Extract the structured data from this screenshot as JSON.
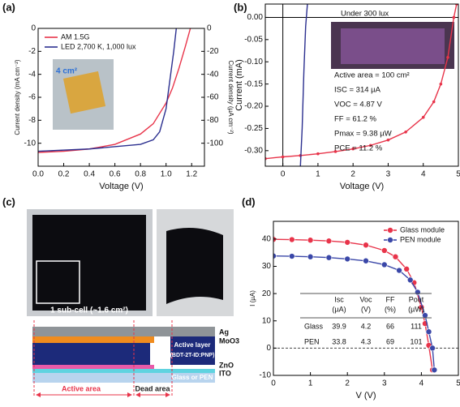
{
  "chart_data": [
    {
      "type": "line",
      "panel": "(a)",
      "xlabel": "Voltage (V)",
      "ylabel": "Current density (mA cm⁻²)",
      "y2label": "Current density (µA cm⁻²)",
      "xlim": [
        0,
        1.3
      ],
      "xticks": [
        {
          "value": 0,
          "label": "0.0"
        },
        0.2,
        0.4,
        0.6,
        0.8,
        {
          "value": 1,
          "label": "1.0"
        },
        1.2
      ],
      "ylim": [
        -12,
        0
      ],
      "yticks": [
        0,
        -2,
        -4,
        -6,
        -8,
        -10
      ],
      "y2lim": [
        -120,
        0
      ],
      "y2ticks": [
        0,
        -20,
        -40,
        -60,
        -80,
        -100
      ],
      "legend": "upper left",
      "series": [
        {
          "name": "AM 1.5G",
          "color": "#e8344a",
          "x": [
            0,
            0.2,
            0.4,
            0.6,
            0.8,
            0.9,
            1.0,
            1.05,
            1.1,
            1.15,
            1.19
          ],
          "values": [
            -10.8,
            -10.7,
            -10.5,
            -10.1,
            -9.2,
            -8.3,
            -6.5,
            -5.2,
            -3.5,
            -1.6,
            0
          ]
        },
        {
          "name": "LED 2,700 K, 1,000 lux",
          "color": "#2b2f8f",
          "axis": "y2",
          "x": [
            0,
            0.4,
            0.8,
            0.9,
            0.95,
            1.0,
            1.03,
            1.06,
            1.08
          ],
          "values": [
            -107,
            -105,
            -101,
            -97,
            -90,
            -70,
            -45,
            -20,
            0
          ]
        }
      ],
      "annotations": [
        "4 cm²"
      ]
    },
    {
      "type": "line",
      "panel": "(b)",
      "xlabel": "Voltage (V)",
      "ylabel": "Current (mA)",
      "xlim": [
        -0.5,
        5
      ],
      "xticks": [
        0,
        1,
        2,
        3,
        4,
        5
      ],
      "ylim": [
        -0.335,
        0.03
      ],
      "yticks": [
        {
          "value": 0,
          "label": "0.00"
        },
        -0.05,
        {
          "value": -0.1,
          "label": "-0.10"
        },
        -0.15,
        {
          "value": -0.2,
          "label": "-0.20"
        },
        -0.25,
        {
          "value": -0.3,
          "label": "-0.30"
        }
      ],
      "zero_lines": true,
      "series": [
        {
          "color": "#e8344a",
          "markers": true,
          "x": [
            -0.5,
            0,
            0.5,
            1,
            1.5,
            2,
            2.5,
            3,
            3.5,
            4,
            4.3,
            4.5,
            4.7,
            4.87,
            4.95
          ],
          "values": [
            -0.318,
            -0.314,
            -0.311,
            -0.307,
            -0.302,
            -0.296,
            -0.288,
            -0.276,
            -0.258,
            -0.225,
            -0.19,
            -0.15,
            -0.09,
            0,
            0.03
          ]
        },
        {
          "color": "#2b2f8f",
          "x": [
            0.5,
            0.55,
            0.6,
            0.65,
            0.7
          ],
          "values": [
            -0.335,
            -0.25,
            -0.12,
            -0.02,
            0.03
          ]
        }
      ],
      "annotations": [
        "Under 300 lux",
        "Active area = 100 cm²",
        "ISC = 314 µA",
        "VOC = 4.87 V",
        "FF = 61.2 %",
        "Pmax = 9.38 µW",
        "PCE = 11.2 %"
      ]
    },
    {
      "type": "line",
      "panel": "(d)",
      "xlabel": "V (V)",
      "ylabel": "I (µA)",
      "xlim": [
        0,
        5
      ],
      "xticks": [
        0,
        1,
        2,
        3,
        4,
        5
      ],
      "ylim": [
        -10,
        46.5
      ],
      "yticks": [
        -10,
        0,
        10,
        20,
        30,
        40
      ],
      "legend": "upper right",
      "zero_line_y": true,
      "series": [
        {
          "name": "Glass module",
          "color": "#e8344a",
          "markers": true,
          "x": [
            0,
            0.5,
            1,
            1.5,
            2,
            2.5,
            3,
            3.3,
            3.6,
            3.8,
            4,
            4.1,
            4.2,
            4.3
          ],
          "values": [
            39.9,
            39.8,
            39.6,
            39.3,
            38.8,
            37.8,
            35.8,
            33.5,
            29,
            24,
            15,
            9,
            1,
            -8
          ]
        },
        {
          "name": "PEN module",
          "color": "#3a47a8",
          "markers": true,
          "x": [
            0,
            0.5,
            1,
            1.5,
            2,
            2.5,
            3,
            3.4,
            3.7,
            3.9,
            4.1,
            4.2,
            4.3,
            4.35
          ],
          "values": [
            33.8,
            33.7,
            33.5,
            33.2,
            32.7,
            32,
            30.6,
            28.5,
            25,
            20.5,
            12,
            6,
            0,
            -8
          ]
        }
      ],
      "table": {
        "header": [
          [
            "Isc",
            "(µA)"
          ],
          [
            "Voc",
            "(V)"
          ],
          [
            "FF",
            "(%)"
          ],
          [
            "Pout",
            "(µW)"
          ]
        ],
        "rows": [
          [
            "Glass",
            "39.9",
            "4.2",
            "66",
            "111"
          ],
          [
            "PEN",
            "33.8",
            "4.3",
            "69",
            "101"
          ]
        ]
      }
    }
  ],
  "panel_c": {
    "panel": "(c)",
    "photo_label": "1 sub-cell (~1.6 cm²)",
    "layers": [
      "Ag",
      "MoO3",
      "ZnO",
      "ITO"
    ],
    "active_layer": [
      "Active layer",
      "(BDT-2T-ID:PNP)"
    ],
    "substrate": "Glass or PEN",
    "areas": [
      "Active area",
      "Dead area"
    ]
  }
}
